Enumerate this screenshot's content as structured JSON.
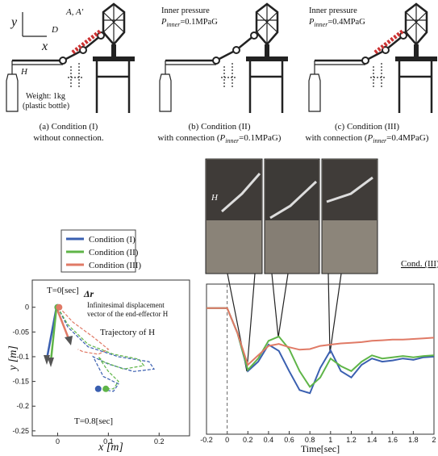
{
  "figure": {
    "diagrams": [
      {
        "labels": {
          "y": "y",
          "x": "x",
          "D": "D",
          "A": "A, A′",
          "H": "H",
          "weight": "Weight: 1kg",
          "bottle": "(plastic bottle)"
        },
        "caption": [
          "(a) Condition (I)",
          "without connection."
        ]
      },
      {
        "pressure": [
          "Inner pressure",
          "P",
          "inner",
          "=0.1MPaG"
        ],
        "caption": [
          "(b) Condition (II)",
          "with connection (",
          "P",
          "inner",
          "=0.1MPaG)"
        ]
      },
      {
        "pressure": [
          "Inner pressure",
          "P",
          "inner",
          "=0.4MPaG"
        ],
        "caption": [
          "(c) Condition (III)",
          "with connection (",
          "P",
          "inner",
          "=0.4MPaG)"
        ]
      }
    ],
    "photos": {
      "label": "H",
      "condition": "Cond. (III)"
    }
  },
  "chart_data": [
    {
      "type": "line",
      "xlabel": "x [m]",
      "ylabel": "y [m]",
      "xlim": [
        -0.05,
        0.26
      ],
      "ylim": [
        -0.26,
        0.055
      ],
      "xticks": [
        0,
        0.1,
        0.2
      ],
      "yticks": [
        0,
        -0.05,
        -0.1,
        -0.15,
        -0.2,
        -0.25
      ],
      "annotations": [
        "T=0[sec]",
        "Δr",
        "Infinitesimal displacement",
        "vector of the end-effector H",
        "Trajectory of H",
        "T=0.8[sec]"
      ],
      "series": [
        {
          "name": "Condition (I)",
          "color": "#3a5fb0",
          "x": [
            0,
            0.02,
            0.06,
            0.12,
            0.18,
            0.19,
            0.15,
            0.1,
            0.07,
            0.09,
            0.12,
            0.11,
            0.08
          ],
          "values": [
            0,
            -0.04,
            -0.08,
            -0.1,
            -0.11,
            -0.125,
            -0.13,
            -0.115,
            -0.1,
            -0.14,
            -0.155,
            -0.17,
            -0.165
          ]
        },
        {
          "name": "Condition (II)",
          "color": "#5fb548",
          "x": [
            0,
            0.02,
            0.06,
            0.11,
            0.16,
            0.17,
            0.13,
            0.09,
            0.08,
            0.1,
            0.12,
            0.11,
            0.095
          ],
          "values": [
            0,
            -0.035,
            -0.075,
            -0.095,
            -0.105,
            -0.118,
            -0.125,
            -0.11,
            -0.1,
            -0.13,
            -0.15,
            -0.165,
            -0.165
          ]
        },
        {
          "name": "Condition (III)",
          "color": "#e07a66",
          "x": [
            0.003,
            0.03,
            0.07,
            0.1,
            0.08,
            0.05,
            0.04
          ],
          "values": [
            0,
            -0.03,
            -0.06,
            -0.085,
            -0.095,
            -0.09,
            -0.085
          ]
        }
      ]
    },
    {
      "type": "line",
      "xlabel": "Time[sec]",
      "xlim": [
        -0.2,
        2
      ],
      "ylim": [
        -0.2,
        0.038
      ],
      "xticks": [
        -0.2,
        0,
        0.2,
        0.4,
        0.6,
        0.8,
        1,
        1.2,
        1.4,
        1.6,
        1.8,
        2
      ],
      "x": [
        -0.2,
        -0.1,
        0,
        0.1,
        0.2,
        0.3,
        0.4,
        0.5,
        0.6,
        0.7,
        0.8,
        0.9,
        1,
        1.1,
        1.2,
        1.3,
        1.4,
        1.5,
        1.6,
        1.7,
        1.8,
        1.9,
        2
      ],
      "series": [
        {
          "color": "#3a5fb0",
          "values": [
            0,
            0,
            0,
            -0.04,
            -0.1,
            -0.085,
            -0.058,
            -0.068,
            -0.1,
            -0.13,
            -0.135,
            -0.095,
            -0.067,
            -0.1,
            -0.11,
            -0.09,
            -0.08,
            -0.085,
            -0.083,
            -0.08,
            -0.082,
            -0.078,
            -0.077
          ]
        },
        {
          "color": "#5fb548",
          "values": [
            0,
            0,
            0,
            -0.04,
            -0.098,
            -0.08,
            -0.052,
            -0.045,
            -0.065,
            -0.1,
            -0.125,
            -0.11,
            -0.08,
            -0.092,
            -0.1,
            -0.085,
            -0.075,
            -0.08,
            -0.078,
            -0.076,
            -0.078,
            -0.076,
            -0.075
          ]
        },
        {
          "color": "#e07a66",
          "values": [
            0,
            0,
            0,
            -0.04,
            -0.09,
            -0.075,
            -0.06,
            -0.057,
            -0.062,
            -0.066,
            -0.065,
            -0.06,
            -0.058,
            -0.056,
            -0.055,
            -0.054,
            -0.052,
            -0.051,
            -0.05,
            -0.05,
            -0.049,
            -0.048,
            -0.047
          ]
        }
      ]
    }
  ]
}
